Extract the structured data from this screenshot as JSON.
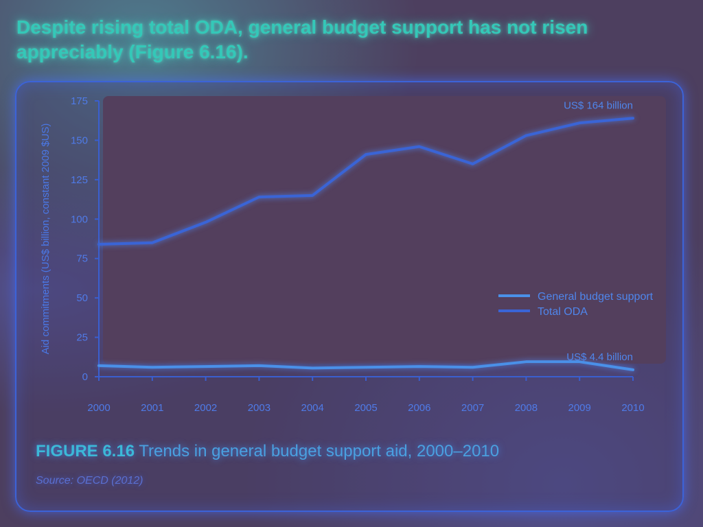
{
  "headline": "Despite rising total ODA, general budget support has not risen appreciably (Figure 6.16).",
  "caption": {
    "figure_label": "FIGURE 6.16",
    "text": "Trends in general budget support aid, 2000–2010"
  },
  "source": "Source: OECD (2012)",
  "colors": {
    "total_oda": "#3a64d6",
    "general_budget_support": "#4a90e8",
    "axis": "#3a5fd0"
  },
  "chart_data": {
    "type": "line",
    "title": "",
    "xlabel": "",
    "ylabel": "Aid commitments (US$ billion, constant 2009 $US)",
    "categories": [
      "2000",
      "2001",
      "2002",
      "2003",
      "2004",
      "2005",
      "2006",
      "2007",
      "2008",
      "2009",
      "2010"
    ],
    "ylim": [
      0,
      175
    ],
    "yticks": [
      0,
      25,
      50,
      75,
      100,
      125,
      150,
      175
    ],
    "series": [
      {
        "name": "Total ODA",
        "values": [
          84,
          85,
          98,
          114,
          115,
          141,
          146,
          135,
          153,
          161,
          164
        ]
      },
      {
        "name": "General budget support",
        "values": [
          7,
          6,
          6.5,
          7,
          5.5,
          6,
          6.5,
          6,
          9.5,
          9.5,
          4.4
        ]
      }
    ],
    "legend": [
      "General budget support",
      "Total ODA"
    ],
    "legend_position": "right",
    "annotations": [
      {
        "text": "US$ 164 billion",
        "series": "Total ODA",
        "x": "2010"
      },
      {
        "text": "US$ 4.4 billion",
        "series": "General budget support",
        "x": "2010"
      }
    ]
  }
}
